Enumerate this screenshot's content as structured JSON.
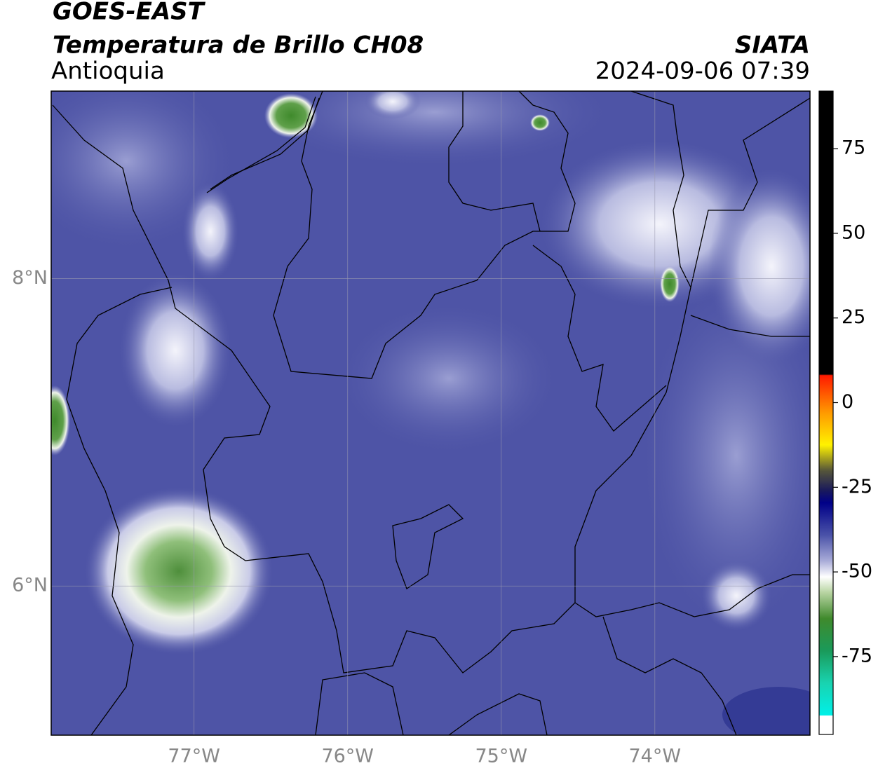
{
  "header": {
    "satellite": "GOES-EAST",
    "product": "Temperatura de Brillo CH08",
    "region": "Antioquia",
    "agency": "SIATA",
    "timestamp": "2024-09-06 07:39"
  },
  "map": {
    "xlim": [
      -77.93,
      -72.99
    ],
    "ylim": [
      5.03,
      9.22
    ],
    "xticks": [
      {
        "value": -77,
        "label": "77°W"
      },
      {
        "value": -76,
        "label": "76°W"
      },
      {
        "value": -75,
        "label": "75°W"
      },
      {
        "value": -74,
        "label": "74°W"
      }
    ],
    "yticks": [
      {
        "value": 8,
        "label": "8°N"
      },
      {
        "value": 6,
        "label": "6°N"
      }
    ],
    "grid": true
  },
  "colorbar": {
    "lim": [
      -98,
      92
    ],
    "ticks": [
      75,
      50,
      25,
      0,
      -25,
      -50,
      -75
    ]
  }
}
